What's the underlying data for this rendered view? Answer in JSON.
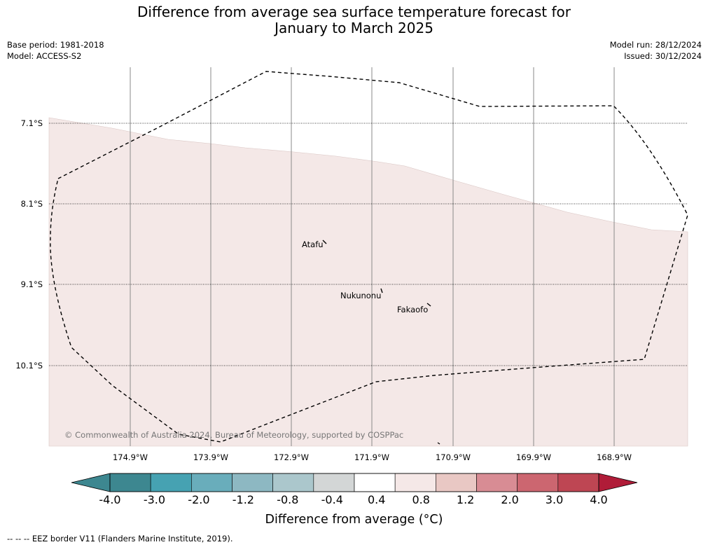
{
  "title_line1": "Difference from average sea surface temperature forecast for",
  "title_line2": "January to March 2025",
  "base_period": "Base period: 1981-2018",
  "model": "Model: ACCESS-S2",
  "model_run": "Model run: 28/12/2024",
  "issued": "Issued: 30/12/2024",
  "latitude_labels": [
    "7.1°S",
    "8.1°S",
    "9.1°S",
    "10.1°S"
  ],
  "longitude_labels": [
    "174.9°W",
    "173.9°W",
    "172.9°W",
    "171.9°W",
    "170.9°W",
    "169.9°W",
    "168.9°W"
  ],
  "islands": {
    "atafu": "Atafu",
    "nukunonu": "Nukunonu",
    "fakaofo": "Fakaofo"
  },
  "copyright": "© Commonwealth of Australia 2024, Bureau of Meteorology, supported by COSPPac",
  "colorbar": {
    "ticks": [
      "-4.0",
      "-3.0",
      "-2.0",
      "-1.2",
      "-0.8",
      "-0.4",
      "0.4",
      "0.8",
      "1.2",
      "2.0",
      "3.0",
      "4.0"
    ],
    "colors": [
      "#3d8790",
      "#46a2b2",
      "#69adbb",
      "#8db8c2",
      "#abc7cc",
      "#d3d6d6",
      "#ffffff",
      "#f5e8e7",
      "#e9c8c4",
      "#d88c94",
      "#cc6670",
      "#be4653"
    ],
    "under_color": "#3d8790",
    "over_color": "#b01c38",
    "title": "Difference from average (°C)"
  },
  "map_colors": {
    "anomaly_fill": "#f4e8e7",
    "eez_line": "#000000"
  },
  "footnote": "--  --  -- EEZ border V11 (Flanders Marine Institute, 2019)."
}
